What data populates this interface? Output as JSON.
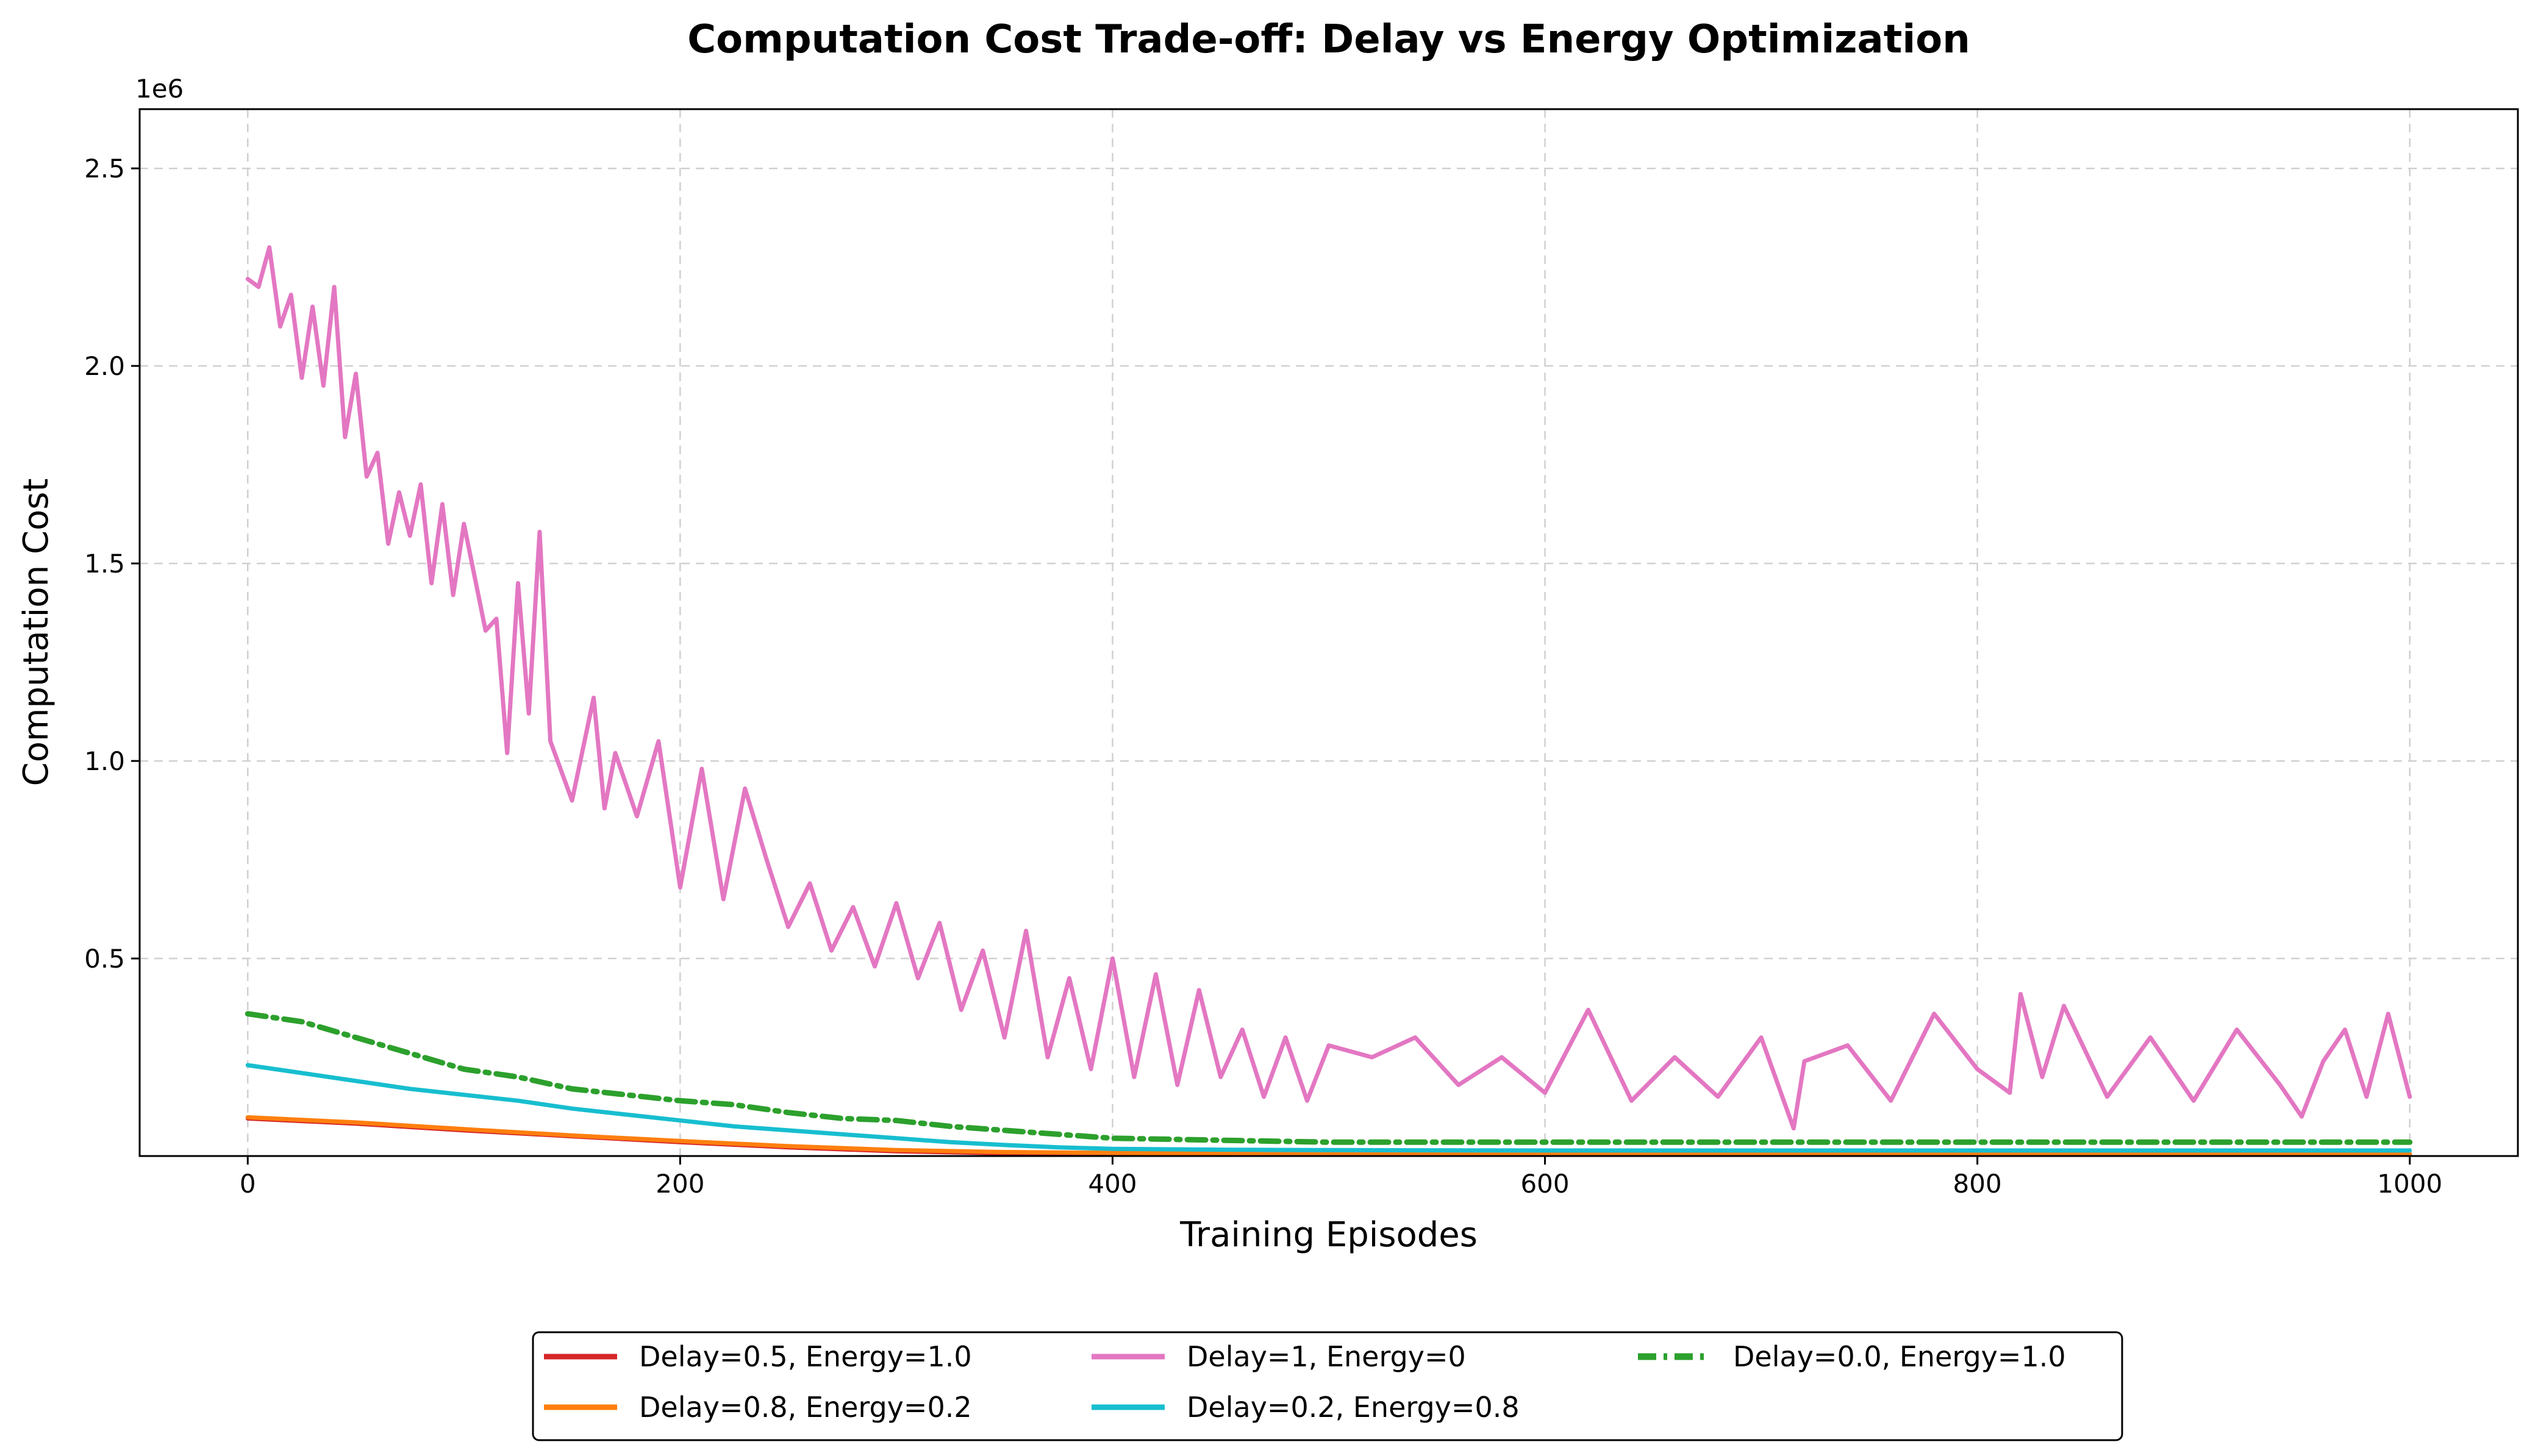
{
  "chart_data": {
    "type": "line",
    "title": "Computation Cost Trade-off: Delay vs Energy Optimization",
    "xlabel": "Training Episodes",
    "ylabel": "Computation Cost",
    "y_offset_label": "1e6",
    "xlim": [
      -50,
      1050
    ],
    "ylim": [
      0,
      2.65
    ],
    "x_ticks": [
      0,
      200,
      400,
      600,
      800,
      1000
    ],
    "x_tick_labels": [
      "0",
      "200",
      "400",
      "600",
      "800",
      "1000"
    ],
    "y_ticks": [
      0.5,
      1.0,
      1.5,
      2.0,
      2.5
    ],
    "y_tick_labels": [
      "0.5",
      "1.0",
      "1.5",
      "2.0",
      "2.5"
    ],
    "grid": true,
    "legend_position": "bottom-center",
    "legend_columns": 3,
    "series": [
      {
        "name": "Delay=0.5, Energy=1.0",
        "color": "#d62728",
        "style": "solid",
        "x": [
          0,
          50,
          100,
          150,
          200,
          250,
          300,
          350,
          400,
          500,
          600,
          700,
          800,
          900,
          1000
        ],
        "y": [
          0.095,
          0.082,
          0.065,
          0.05,
          0.035,
          0.022,
          0.012,
          0.007,
          0.005,
          0.004,
          0.004,
          0.004,
          0.004,
          0.004,
          0.004
        ]
      },
      {
        "name": "Delay=0.8, Energy=0.2",
        "color": "#ff7f0e",
        "style": "solid",
        "x": [
          0,
          50,
          100,
          150,
          200,
          250,
          300,
          350,
          400,
          500,
          600,
          700,
          800,
          900,
          1000
        ],
        "y": [
          0.098,
          0.085,
          0.068,
          0.052,
          0.038,
          0.025,
          0.015,
          0.01,
          0.008,
          0.006,
          0.006,
          0.006,
          0.006,
          0.006,
          0.006
        ]
      },
      {
        "name": "Delay=1, Energy=0",
        "color": "#e377c2",
        "style": "solid",
        "x": [
          0,
          5,
          10,
          15,
          20,
          25,
          30,
          35,
          40,
          45,
          50,
          55,
          60,
          65,
          70,
          75,
          80,
          85,
          90,
          95,
          100,
          110,
          115,
          120,
          125,
          130,
          135,
          140,
          150,
          160,
          165,
          170,
          180,
          190,
          200,
          210,
          220,
          230,
          240,
          250,
          260,
          270,
          280,
          290,
          300,
          310,
          320,
          330,
          340,
          350,
          360,
          370,
          380,
          390,
          400,
          410,
          420,
          430,
          440,
          450,
          460,
          470,
          480,
          490,
          500,
          520,
          540,
          560,
          580,
          600,
          620,
          640,
          660,
          680,
          700,
          715,
          720,
          740,
          760,
          780,
          800,
          815,
          820,
          830,
          840,
          860,
          880,
          900,
          920,
          940,
          950,
          960,
          970,
          980,
          990,
          1000
        ],
        "y": [
          2.22,
          2.2,
          2.3,
          2.1,
          2.18,
          1.97,
          2.15,
          1.95,
          2.2,
          1.82,
          1.98,
          1.72,
          1.78,
          1.55,
          1.68,
          1.57,
          1.7,
          1.45,
          1.65,
          1.42,
          1.6,
          1.33,
          1.36,
          1.02,
          1.45,
          1.12,
          1.58,
          1.05,
          0.9,
          1.16,
          0.88,
          1.02,
          0.86,
          1.05,
          0.68,
          0.98,
          0.65,
          0.93,
          0.75,
          0.58,
          0.69,
          0.52,
          0.63,
          0.48,
          0.64,
          0.45,
          0.59,
          0.37,
          0.52,
          0.3,
          0.57,
          0.25,
          0.45,
          0.22,
          0.5,
          0.2,
          0.46,
          0.18,
          0.42,
          0.2,
          0.32,
          0.15,
          0.3,
          0.14,
          0.28,
          0.25,
          0.3,
          0.18,
          0.25,
          0.16,
          0.37,
          0.14,
          0.25,
          0.15,
          0.3,
          0.07,
          0.24,
          0.28,
          0.14,
          0.36,
          0.22,
          0.16,
          0.41,
          0.2,
          0.38,
          0.15,
          0.3,
          0.14,
          0.32,
          0.18,
          0.1,
          0.24,
          0.32,
          0.15,
          0.36,
          0.15
        ]
      },
      {
        "name": "Delay=0.2, Energy=0.8",
        "color": "#17becf",
        "style": "solid",
        "x": [
          0,
          25,
          50,
          75,
          100,
          125,
          150,
          175,
          200,
          225,
          250,
          275,
          300,
          325,
          350,
          375,
          400,
          450,
          500,
          600,
          700,
          800,
          900,
          1000
        ],
        "y": [
          0.23,
          0.21,
          0.19,
          0.17,
          0.155,
          0.14,
          0.12,
          0.105,
          0.09,
          0.075,
          0.065,
          0.055,
          0.045,
          0.035,
          0.028,
          0.022,
          0.018,
          0.016,
          0.015,
          0.014,
          0.014,
          0.014,
          0.014,
          0.014
        ]
      },
      {
        "name": "Delay=0.0, Energy=1.0",
        "color": "#2ca02c",
        "style": "dashdot",
        "x": [
          0,
          25,
          50,
          75,
          100,
          125,
          150,
          175,
          200,
          225,
          250,
          275,
          300,
          325,
          350,
          375,
          400,
          450,
          500,
          600,
          700,
          800,
          900,
          1000
        ],
        "y": [
          0.36,
          0.34,
          0.3,
          0.26,
          0.22,
          0.2,
          0.17,
          0.155,
          0.14,
          0.13,
          0.11,
          0.095,
          0.09,
          0.075,
          0.065,
          0.055,
          0.045,
          0.04,
          0.035,
          0.035,
          0.035,
          0.035,
          0.035,
          0.035
        ]
      }
    ]
  }
}
